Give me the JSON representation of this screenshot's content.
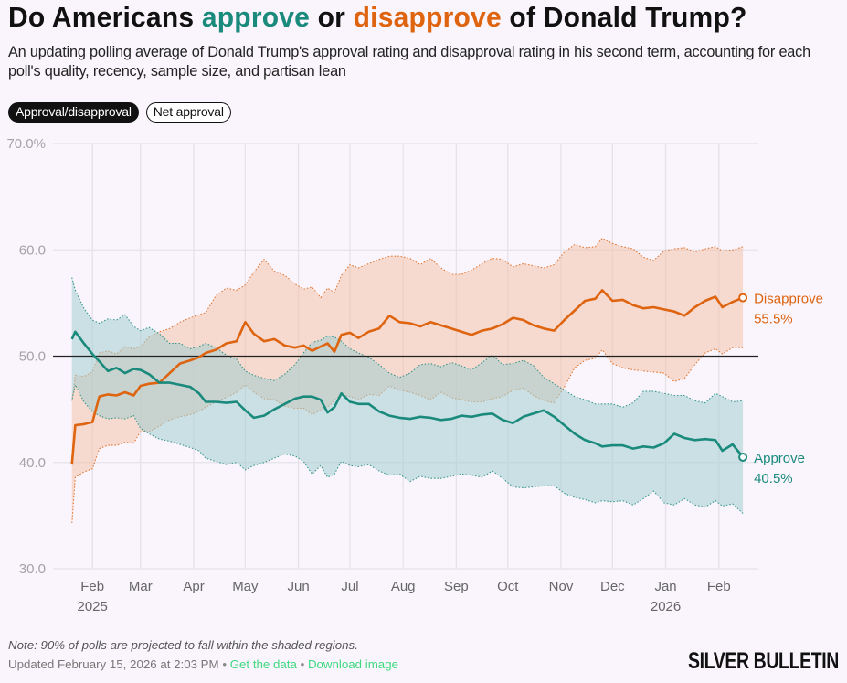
{
  "header": {
    "title_parts": [
      "Do Americans ",
      "approve",
      " or ",
      "disapprove",
      " of Donald Trump?"
    ],
    "subtitle": "An updating polling average of Donald Trump's approval rating and disapproval rating in his second term, accounting for each poll's quality, recency, sample size, and partisan lean"
  },
  "toggles": [
    {
      "label": "Approval/disapproval",
      "active": true
    },
    {
      "label": "Net approval",
      "active": false
    }
  ],
  "footer": {
    "note": "Note: 90% of polls are projected to fall within the shaded regions.",
    "updated": "Updated February 15, 2026 at 2:03 PM",
    "separator": "•",
    "get_data": "Get the data",
    "download": "Download image",
    "brand": "SILVER BULLETIN"
  },
  "colors": {
    "approve": "#1a8a7c",
    "approve_band": "#a3cdd0",
    "disapprove": "#de6410",
    "disapprove_band": "#f3c1a9",
    "background": "#faf5fd",
    "link": "#3fd97f"
  },
  "chart_data": {
    "type": "line",
    "title": "Do Americans approve or disapprove of Donald Trump?",
    "xlabel": "",
    "ylabel": "",
    "ylim": [
      30,
      70
    ],
    "yticks": [
      70,
      60,
      50,
      40,
      30
    ],
    "ytick_labels": [
      "70.0%",
      "60.0",
      "50.0",
      "40.0",
      "30.0"
    ],
    "reference_line": 50,
    "grid": true,
    "xlim": [
      "2025-01-09",
      "2026-02-24"
    ],
    "xticks": [
      {
        "date": "2025-02-01",
        "label": "Feb",
        "year": "2025"
      },
      {
        "date": "2025-03-01",
        "label": "Mar",
        "year": ""
      },
      {
        "date": "2025-04-01",
        "label": "Apr",
        "year": ""
      },
      {
        "date": "2025-05-01",
        "label": "May",
        "year": ""
      },
      {
        "date": "2025-06-01",
        "label": "Jun",
        "year": ""
      },
      {
        "date": "2025-07-01",
        "label": "Jul",
        "year": ""
      },
      {
        "date": "2025-08-01",
        "label": "Aug",
        "year": ""
      },
      {
        "date": "2025-09-01",
        "label": "Sep",
        "year": ""
      },
      {
        "date": "2025-10-01",
        "label": "Oct",
        "year": ""
      },
      {
        "date": "2025-11-01",
        "label": "Nov",
        "year": ""
      },
      {
        "date": "2025-12-01",
        "label": "Dec",
        "year": ""
      },
      {
        "date": "2026-01-01",
        "label": "Jan",
        "year": "2026"
      },
      {
        "date": "2026-02-01",
        "label": "Feb",
        "year": ""
      }
    ],
    "legend": "end-labels-right",
    "series": [
      {
        "name": "Disapprove",
        "end_label": "55.5%",
        "x": [
          "2025-01-20",
          "2025-01-22",
          "2025-01-27",
          "2025-02-01",
          "2025-02-05",
          "2025-02-10",
          "2025-02-15",
          "2025-02-20",
          "2025-02-25",
          "2025-03-01",
          "2025-03-06",
          "2025-03-12",
          "2025-03-18",
          "2025-03-24",
          "2025-03-30",
          "2025-04-04",
          "2025-04-08",
          "2025-04-14",
          "2025-04-20",
          "2025-04-26",
          "2025-05-01",
          "2025-05-06",
          "2025-05-12",
          "2025-05-18",
          "2025-05-24",
          "2025-05-30",
          "2025-06-04",
          "2025-06-09",
          "2025-06-14",
          "2025-06-18",
          "2025-06-22",
          "2025-06-26",
          "2025-07-01",
          "2025-07-06",
          "2025-07-12",
          "2025-07-18",
          "2025-07-24",
          "2025-07-30",
          "2025-08-05",
          "2025-08-11",
          "2025-08-17",
          "2025-08-23",
          "2025-08-29",
          "2025-09-04",
          "2025-09-10",
          "2025-09-16",
          "2025-09-22",
          "2025-09-28",
          "2025-10-04",
          "2025-10-10",
          "2025-10-16",
          "2025-10-22",
          "2025-10-28",
          "2025-11-03",
          "2025-11-09",
          "2025-11-15",
          "2025-11-21",
          "2025-11-25",
          "2025-12-01",
          "2025-12-07",
          "2025-12-13",
          "2025-12-19",
          "2025-12-25",
          "2025-12-31",
          "2026-01-06",
          "2026-01-12",
          "2026-01-18",
          "2026-01-24",
          "2026-01-30",
          "2026-02-03",
          "2026-02-09",
          "2026-02-15"
        ],
        "values": [
          39.8,
          43.5,
          43.6,
          43.8,
          46.2,
          46.4,
          46.3,
          46.6,
          46.3,
          47.2,
          47.4,
          47.5,
          48.4,
          49.3,
          49.6,
          49.9,
          50.3,
          50.6,
          51.2,
          51.4,
          53.2,
          52.1,
          51.4,
          51.6,
          51.0,
          50.8,
          51.0,
          50.5,
          50.9,
          51.2,
          50.4,
          52.0,
          52.2,
          51.7,
          52.3,
          52.6,
          53.8,
          53.2,
          53.1,
          52.8,
          53.2,
          52.9,
          52.6,
          52.3,
          52.0,
          52.4,
          52.6,
          53.0,
          53.6,
          53.4,
          52.9,
          52.6,
          52.4,
          53.4,
          54.3,
          55.2,
          55.4,
          56.2,
          55.2,
          55.3,
          54.8,
          54.5,
          54.6,
          54.4,
          54.2,
          53.8,
          54.6,
          55.2,
          55.6,
          54.6,
          55.1,
          55.5
        ],
        "upper": [
          45.8,
          48.2,
          48.1,
          48.5,
          50.3,
          50.5,
          50.2,
          50.9,
          50.7,
          50.9,
          51.8,
          52.3,
          52.6,
          53.2,
          53.6,
          53.9,
          54.1,
          55.7,
          56.4,
          56.2,
          56.7,
          57.9,
          59.1,
          58.0,
          57.6,
          56.8,
          56.3,
          56.5,
          55.5,
          56.4,
          56.0,
          57.6,
          58.6,
          58.3,
          58.7,
          59.1,
          59.4,
          59.4,
          59.2,
          58.6,
          59.2,
          58.3,
          57.7,
          57.7,
          58.1,
          58.7,
          59.2,
          59.1,
          58.4,
          58.7,
          58.5,
          58.3,
          58.6,
          59.8,
          60.5,
          60.2,
          60.3,
          61.1,
          60.6,
          60.3,
          60.1,
          59.3,
          59.0,
          59.9,
          60.1,
          60.2,
          59.8,
          60.1,
          60.3,
          59.9,
          60.0,
          60.3
        ],
        "lower": [
          34.2,
          38.6,
          39.1,
          39.4,
          41.3,
          41.6,
          41.6,
          41.9,
          41.8,
          42.9,
          42.9,
          43.4,
          44.0,
          44.3,
          44.5,
          44.8,
          45.2,
          45.7,
          46.1,
          46.6,
          47.3,
          46.6,
          46.0,
          45.9,
          45.3,
          45.1,
          45.1,
          44.5,
          44.9,
          45.2,
          45.8,
          46.4,
          46.2,
          45.9,
          46.4,
          46.3,
          47.2,
          46.8,
          46.6,
          46.3,
          45.9,
          46.6,
          46.1,
          45.9,
          45.7,
          45.7,
          46.0,
          46.2,
          46.8,
          47.0,
          46.3,
          45.8,
          45.6,
          47.1,
          48.9,
          49.6,
          49.8,
          50.6,
          49.3,
          48.9,
          48.7,
          48.6,
          48.5,
          48.4,
          47.6,
          47.9,
          49.2,
          50.3,
          50.7,
          50.2,
          50.8,
          50.8
        ]
      },
      {
        "name": "Approve",
        "end_label": "40.5%",
        "x": [
          "2025-01-20",
          "2025-01-22",
          "2025-01-27",
          "2025-02-01",
          "2025-02-05",
          "2025-02-10",
          "2025-02-15",
          "2025-02-20",
          "2025-02-25",
          "2025-03-01",
          "2025-03-06",
          "2025-03-12",
          "2025-03-18",
          "2025-03-24",
          "2025-03-30",
          "2025-04-04",
          "2025-04-08",
          "2025-04-14",
          "2025-04-20",
          "2025-04-26",
          "2025-05-01",
          "2025-05-06",
          "2025-05-12",
          "2025-05-18",
          "2025-05-24",
          "2025-05-30",
          "2025-06-04",
          "2025-06-09",
          "2025-06-14",
          "2025-06-18",
          "2025-06-22",
          "2025-06-26",
          "2025-07-01",
          "2025-07-06",
          "2025-07-12",
          "2025-07-18",
          "2025-07-24",
          "2025-07-30",
          "2025-08-05",
          "2025-08-11",
          "2025-08-17",
          "2025-08-23",
          "2025-08-29",
          "2025-09-04",
          "2025-09-10",
          "2025-09-16",
          "2025-09-22",
          "2025-09-28",
          "2025-10-04",
          "2025-10-10",
          "2025-10-16",
          "2025-10-22",
          "2025-10-28",
          "2025-11-03",
          "2025-11-09",
          "2025-11-15",
          "2025-11-21",
          "2025-11-25",
          "2025-12-01",
          "2025-12-07",
          "2025-12-13",
          "2025-12-19",
          "2025-12-25",
          "2025-12-31",
          "2026-01-06",
          "2026-01-12",
          "2026-01-18",
          "2026-01-24",
          "2026-01-30",
          "2026-02-03",
          "2026-02-09",
          "2026-02-15"
        ],
        "values": [
          51.6,
          52.3,
          51.2,
          50.2,
          49.5,
          48.6,
          48.9,
          48.4,
          48.8,
          48.7,
          48.3,
          47.5,
          47.5,
          47.3,
          47.1,
          46.5,
          45.7,
          45.7,
          45.6,
          45.7,
          44.9,
          44.2,
          44.4,
          45.0,
          45.5,
          46.0,
          46.2,
          46.2,
          45.9,
          44.7,
          45.2,
          46.5,
          45.7,
          45.5,
          45.5,
          44.8,
          44.4,
          44.2,
          44.1,
          44.3,
          44.2,
          44.0,
          44.1,
          44.4,
          44.3,
          44.5,
          44.6,
          44.0,
          43.7,
          44.3,
          44.6,
          44.9,
          44.3,
          43.5,
          42.7,
          42.1,
          41.8,
          41.5,
          41.6,
          41.6,
          41.3,
          41.5,
          41.4,
          41.8,
          42.7,
          42.3,
          42.1,
          42.2,
          42.1,
          41.1,
          41.7,
          40.5
        ],
        "upper": [
          57.4,
          56.2,
          54.5,
          53.4,
          53.1,
          53.5,
          53.4,
          53.9,
          52.8,
          52.4,
          52.7,
          52.1,
          51.2,
          51.2,
          50.7,
          50.9,
          51.2,
          50.8,
          50.1,
          49.7,
          48.6,
          48.2,
          47.9,
          47.7,
          48.3,
          49.2,
          50.3,
          51.3,
          51.5,
          51.9,
          51.8,
          51.4,
          50.7,
          50.3,
          49.9,
          49.2,
          48.4,
          48.0,
          48.4,
          49.2,
          49.3,
          49.0,
          49.4,
          49.1,
          48.7,
          49.4,
          50.1,
          49.2,
          49.3,
          49.6,
          49.1,
          48.0,
          47.4,
          46.8,
          46.2,
          45.9,
          45.5,
          45.5,
          45.5,
          45.2,
          45.6,
          46.7,
          46.7,
          46.5,
          46.3,
          46.3,
          45.8,
          45.6,
          46.5,
          46.2,
          45.7,
          45.8
        ],
        "lower": [
          45.8,
          47.3,
          45.7,
          44.8,
          44.4,
          44.1,
          44.2,
          44.1,
          44.4,
          43.2,
          42.7,
          42.2,
          42.0,
          41.7,
          41.4,
          41.1,
          40.4,
          40.1,
          39.8,
          40.0,
          39.3,
          39.7,
          40.0,
          40.4,
          40.8,
          40.6,
          40.1,
          38.9,
          39.7,
          38.6,
          38.9,
          40.1,
          39.7,
          39.6,
          39.8,
          39.2,
          38.8,
          38.9,
          38.2,
          38.7,
          38.5,
          38.5,
          38.7,
          38.9,
          38.8,
          38.6,
          39.2,
          38.5,
          37.7,
          37.6,
          37.7,
          37.8,
          37.8,
          37.1,
          36.7,
          36.5,
          36.2,
          36.4,
          36.3,
          36.4,
          36.0,
          36.6,
          37.3,
          36.2,
          36.0,
          36.6,
          36.0,
          35.8,
          36.4,
          35.9,
          36.1,
          35.2
        ]
      }
    ]
  }
}
